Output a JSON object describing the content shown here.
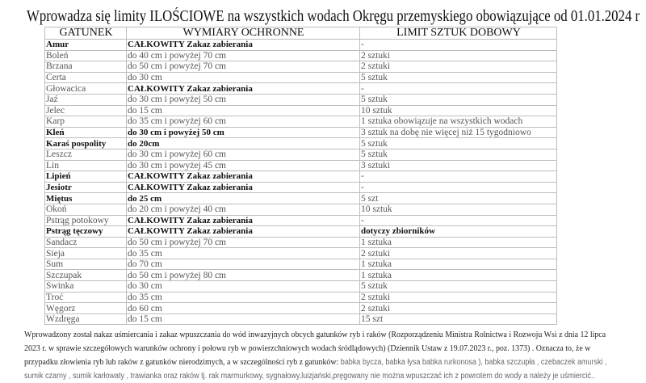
{
  "title": "Wprowadza się limity ILOŚCIOWE na wszystkich wodach Okręgu przemyskiego obowiązujące od 01.01.2024 r",
  "headers": [
    "GATUNEK",
    "WYMIARY  OCHRONNE",
    "LIMIT   SZTUK  DOBOWY"
  ],
  "rows": [
    {
      "name": "Amur",
      "size": "CAŁKOWITY Zakaz zabierania",
      "limit": "-",
      "b": [
        1,
        1,
        0
      ]
    },
    {
      "name": "Boleń",
      "size": "do  40 cm i powyżej  70 cm",
      "limit": "2 sztuki",
      "b": [
        0,
        0,
        0
      ]
    },
    {
      "name": "Brzana",
      "size": "do  50 cm i powyżej  70 cm",
      "limit": "2 sztuki",
      "b": [
        0,
        0,
        0
      ]
    },
    {
      "name": "Certa",
      "size": "do  30 cm",
      "limit": "5 sztuk",
      "b": [
        0,
        0,
        0
      ]
    },
    {
      "name": "Głowacica",
      "size": "CAŁKOWITY Zakaz zabierania",
      "limit": "-",
      "b": [
        0,
        1,
        0
      ]
    },
    {
      "name": "Jaź",
      "size": "do  30 cm i powyżej  50 cm",
      "limit": "5 sztuk",
      "b": [
        0,
        0,
        0
      ]
    },
    {
      "name": "Jelec",
      "size": "do 15 cm",
      "limit": "10 sztuk",
      "b": [
        0,
        0,
        0
      ]
    },
    {
      "name": "Karp",
      "size": "do  35 cm i powyżej  60 cm",
      "limit": "1 sztuka obowiązuje na wszystkich wodach",
      "b": [
        0,
        0,
        0
      ]
    },
    {
      "name": "Kleń",
      "size": "do  30 cm i powyżej  50 cm",
      "limit": "3 sztuk na dobę nie więcej niż 15 tygodniowo",
      "b": [
        1,
        1,
        0
      ]
    },
    {
      "name": "Karaś pospolity",
      "size": "do 20cm",
      "limit": "5 sztuk",
      "b": [
        1,
        1,
        0
      ]
    },
    {
      "name": "Leszcz",
      "size": "do  30 cm i powyżej  60 cm",
      "limit": "5 sztuk",
      "b": [
        0,
        0,
        0
      ]
    },
    {
      "name": "Lin",
      "size": "do  30 cm i powyżej  45 cm",
      "limit": "3 sztuki",
      "b": [
        0,
        0,
        0
      ]
    },
    {
      "name": "Lipień",
      "size": "CAŁKOWITY Zakaz zabierania",
      "limit": "-",
      "b": [
        1,
        1,
        0
      ]
    },
    {
      "name": "Jesiotr",
      "size": "CAŁKOWITY Zakaz zabierania",
      "limit": "-",
      "b": [
        1,
        1,
        0
      ]
    },
    {
      "name": "Miętus",
      "size": "do 25 cm",
      "limit": "5 szt",
      "b": [
        1,
        1,
        0
      ]
    },
    {
      "name": "Okoń",
      "size": "do  20 cm i powyżej 40 cm",
      "limit": "10 sztuk",
      "b": [
        0,
        0,
        0
      ]
    },
    {
      "name": "Pstrąg potokowy",
      "size": "CAŁKOWITY Zakaz zabierania",
      "limit": "-",
      "b": [
        0,
        1,
        0
      ]
    },
    {
      "name": "Pstrąg tęczowy",
      "size": "CAŁKOWITY Zakaz zabierania",
      "limit": "dotyczy zbiorników",
      "b": [
        1,
        1,
        1
      ]
    },
    {
      "name": "Sandacz",
      "size": "do  50 cm i powyżej 70 cm",
      "limit": "1 sztuka",
      "b": [
        0,
        0,
        0
      ]
    },
    {
      "name": "Sieja",
      "size": "do  35 cm",
      "limit": "2 sztuki",
      "b": [
        0,
        0,
        0
      ]
    },
    {
      "name": "Sum",
      "size": "do  70 cm",
      "limit": "1 sztuka",
      "b": [
        0,
        0,
        0
      ]
    },
    {
      "name": "Szczupak",
      "size": "do  50 cm i powyżej 80 cm",
      "limit": "1 sztuka",
      "b": [
        0,
        0,
        0
      ]
    },
    {
      "name": "Świnka",
      "size": "do  30 cm",
      "limit": "5 sztuk",
      "b": [
        0,
        0,
        0
      ]
    },
    {
      "name": "Troć",
      "size": "do  35 cm",
      "limit": "2 sztuki",
      "b": [
        0,
        0,
        0
      ]
    },
    {
      "name": "Węgorz",
      "size": "do  60 cm",
      "limit": "2 sztuki",
      "b": [
        0,
        0,
        0
      ]
    },
    {
      "name": "Wzdręga",
      "size": "do 15 cm",
      "limit": "15 szt",
      "b": [
        0,
        0,
        0
      ]
    }
  ],
  "note": {
    "line1": "Wprowadzony został nakaz uśmiercania i zakaz wpuszczania do wód inwazyjnych obcych gatunków ryb i raków (Rozporządzeniu Ministra Rolnictwa i Rozwoju Wsi z dnia 12 lipca",
    "line2": "2023 r. w sprawie szczegółowych warunków ochrony i połowu ryb w powierzchniowych wodach śródlądowych)  (Dziennik Ustaw z 19.07.2023 r., poz. 1373) . Oznacza to, że w",
    "line3a": "przypadku złowienia ryb lub raków z gatunków nierodzimych, a w szczególności ryb z gatunków:",
    "line3b": "  babka bycza, babka łysa  babka rurkonosa ), babka szczupła , czebaczek amurski ,",
    "line4": "sumik czarny , sumik karłowaty , trawianka oraz raków  tj. rak marmurkowy, sygnałowy,luizjański,pręgowany  nie można wpuszczać ich z powrotem do wody a należy je uśmiercić.."
  }
}
